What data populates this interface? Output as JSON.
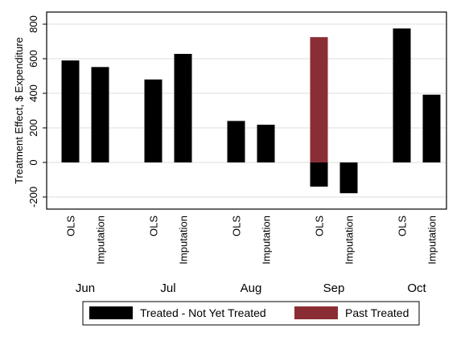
{
  "chart_data": {
    "type": "bar",
    "title": "",
    "xlabel": "",
    "ylabel": "Treatment Effect, $ Expenditure",
    "ylim": [
      -270,
      870
    ],
    "yticks": [
      -200,
      0,
      200,
      400,
      600,
      800
    ],
    "ytick_labels": [
      "-200",
      "0",
      "200",
      "400",
      "600",
      "800"
    ],
    "grid": true,
    "legend_position": "bottom",
    "method_labels": [
      "OLS",
      "Imputation"
    ],
    "months": [
      "Jun",
      "Jul",
      "Aug",
      "Sep",
      "Oct"
    ],
    "series": [
      {
        "name": "Treated - Not Yet Treated",
        "color": "#000000",
        "values": [
          {
            "month": "Jun",
            "method": "OLS",
            "value": 590
          },
          {
            "month": "Jun",
            "method": "Imputation",
            "value": 552
          },
          {
            "month": "Jul",
            "method": "OLS",
            "value": 480
          },
          {
            "month": "Jul",
            "method": "Imputation",
            "value": 628
          },
          {
            "month": "Aug",
            "method": "OLS",
            "value": 240
          },
          {
            "month": "Aug",
            "method": "Imputation",
            "value": 218
          },
          {
            "month": "Sep",
            "method": "OLS",
            "value": -140
          },
          {
            "month": "Sep",
            "method": "Imputation",
            "value": -178
          },
          {
            "month": "Oct",
            "method": "OLS",
            "value": 775
          },
          {
            "month": "Oct",
            "method": "Imputation",
            "value": 392
          }
        ]
      },
      {
        "name": "Past Treated",
        "color": "#8b2d35",
        "values": [
          {
            "month": "Sep",
            "method": "OLS",
            "value": 725
          }
        ]
      }
    ]
  }
}
